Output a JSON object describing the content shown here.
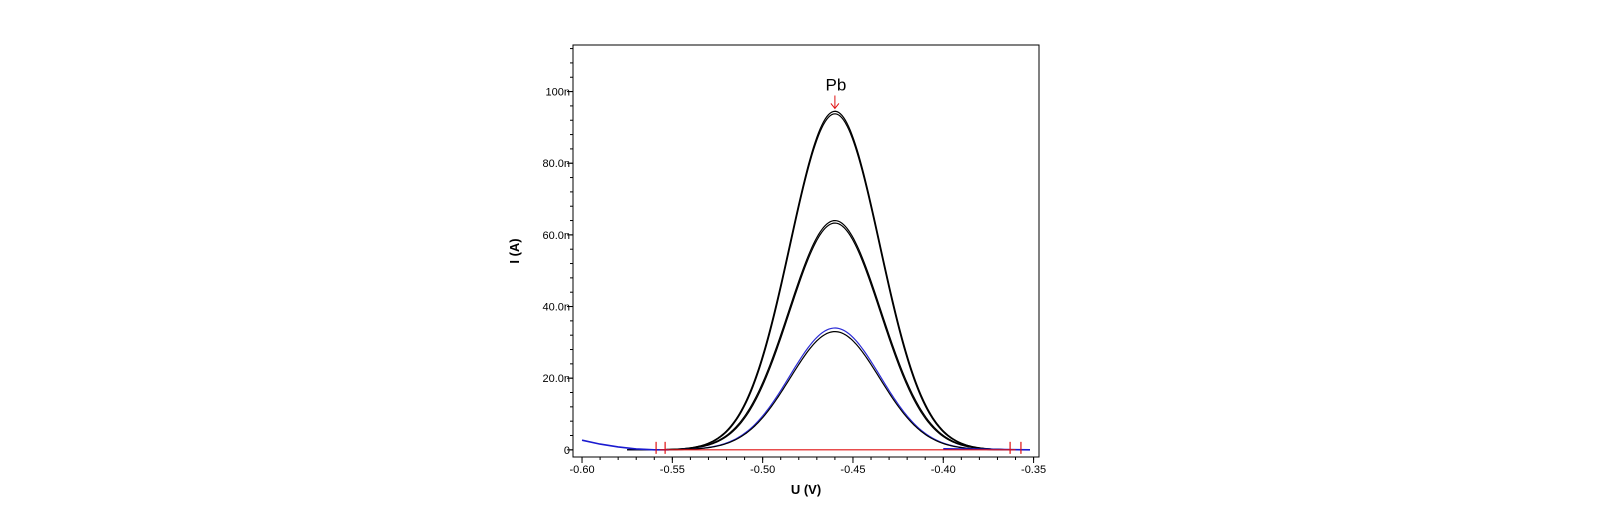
{
  "chart_data": {
    "type": "line",
    "xlabel": "U (V)",
    "ylabel": "I (A)",
    "xlim": [
      -0.605,
      -0.347
    ],
    "ylim": [
      -2,
      113
    ],
    "x_ticks": [
      -0.6,
      -0.55,
      -0.5,
      -0.45,
      -0.4,
      -0.35
    ],
    "x_tick_labels": [
      "-0.60",
      "-0.55",
      "-0.50",
      "-0.45",
      "-0.40",
      "-0.35"
    ],
    "y_ticks": [
      0,
      20,
      40,
      60,
      80,
      100
    ],
    "y_tick_labels": [
      "0",
      "20.0n",
      "40.0n",
      "60.0n",
      "80.0n",
      "100n"
    ],
    "y_unit_note": "y values in nA",
    "grid": false,
    "peak_potential": -0.46,
    "series": [
      {
        "color": "#000000",
        "peak": 94.5,
        "width": 0.025
      },
      {
        "color": "#000000",
        "peak": 93.8,
        "width": 0.0248
      },
      {
        "color": "#000000",
        "peak": 64.0,
        "width": 0.0255
      },
      {
        "color": "#000000",
        "peak": 63.3,
        "width": 0.0252
      },
      {
        "color": "#2b2bd6",
        "peak": 34.0,
        "width": 0.025
      },
      {
        "color": "#000000",
        "peak": 33.0,
        "width": 0.0248
      }
    ],
    "blue_tail": {
      "color": "#1a1ad0",
      "x": [
        -0.6,
        -0.59,
        -0.58,
        -0.57,
        -0.56
      ],
      "y": [
        2.7,
        1.6,
        0.8,
        0.25,
        0
      ]
    },
    "baseline": {
      "color": "#e01010",
      "x": [
        -0.557,
        -0.36
      ],
      "y": [
        0,
        0
      ]
    },
    "baseline_markers": [
      -0.559,
      -0.554,
      -0.363,
      -0.357
    ],
    "annotations": [
      {
        "text": "Pb",
        "x": -0.46,
        "y": 95,
        "color": "#e01010"
      }
    ]
  }
}
